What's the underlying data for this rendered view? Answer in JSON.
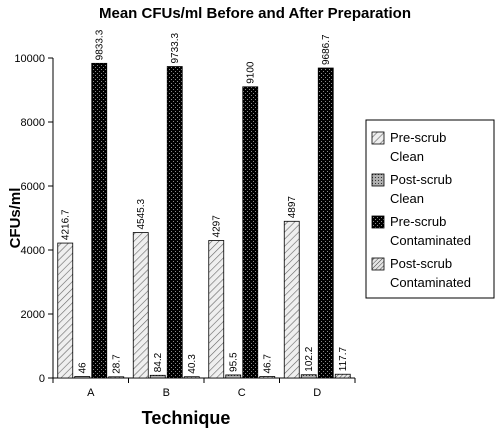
{
  "chart_data": {
    "type": "bar",
    "title": "Mean CFUs/ml Before and After Preparation",
    "xlabel": "Technique",
    "ylabel": "CFUs/ml",
    "ylim": [
      0,
      10000
    ],
    "yticks": [
      "0",
      "2000",
      "4000",
      "6000",
      "8000",
      "10000"
    ],
    "categories": [
      "A",
      "B",
      "C",
      "D"
    ],
    "grid": false,
    "legend_position": "right",
    "series": [
      {
        "name": "Pre-scrub Clean",
        "values": [
          4216.7,
          4545.3,
          4297,
          4897
        ],
        "labels": [
          "4216.7",
          "4545.3",
          "4297",
          "4897"
        ],
        "fill": "hatch-light",
        "color": "#d9d9d9"
      },
      {
        "name": "Post-scrub Clean",
        "values": [
          46,
          84.2,
          95.5,
          102.2
        ],
        "labels": [
          "46",
          "84.2",
          "95.5",
          "102.2"
        ],
        "fill": "dots-grey",
        "color": "#999999"
      },
      {
        "name": "Pre-scrub Contaminated",
        "values": [
          9833.3,
          9733.3,
          9100,
          9686.7
        ],
        "labels": [
          "9833.3",
          "9733.3",
          "9100",
          "9686.7"
        ],
        "fill": "dots-black",
        "color": "#000000"
      },
      {
        "name": "Post-scrub Contaminated",
        "values": [
          28.7,
          40.3,
          46.7,
          117.7
        ],
        "labels": [
          "28.7",
          "40.3",
          "46.7",
          "117.7"
        ],
        "fill": "hatch-dense",
        "color": "#bfbfbf"
      }
    ]
  }
}
